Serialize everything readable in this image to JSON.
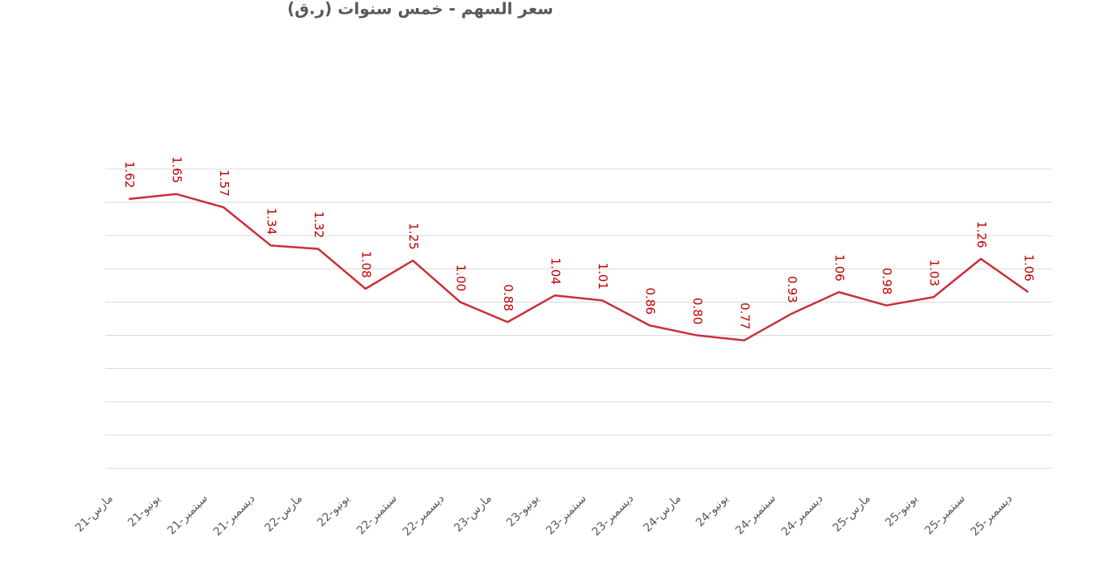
{
  "chart_data": {
    "type": "line",
    "title": "سعر السهم - خمس سنوات (ر.ق)",
    "categories": [
      "مارس-21",
      "يونيو-21",
      "سبتمبر-21",
      "ديسمبر-21",
      "مارس-22",
      "يونيو-22",
      "سبتمبر-22",
      "ديسمبر-22",
      "مارس-23",
      "يونيو-23",
      "سبتمبر-23",
      "ديسمبر-23",
      "مارس-24",
      "يونيو-24",
      "سبتمبر-24",
      "ديسمبر-24",
      "مارس-25",
      "يونيو-25",
      "سبتمبر-25",
      "ديسمبر-25"
    ],
    "values": [
      1.62,
      1.65,
      1.57,
      1.34,
      1.32,
      1.08,
      1.25,
      1.0,
      0.88,
      1.04,
      1.01,
      0.86,
      0.8,
      0.77,
      0.93,
      1.06,
      0.98,
      1.03,
      1.26,
      1.06
    ],
    "value_labels": [
      "1.62",
      "1.65",
      "1.57",
      "1.34",
      "1.32",
      "1.08",
      "1.25",
      "1.00",
      "0.88",
      "1.04",
      "1.01",
      "0.86",
      "0.80",
      "0.77",
      "0.93",
      "1.06",
      "0.98",
      "1.03",
      "1.26",
      "1.06"
    ],
    "color": "#c8303a",
    "ylim": [
      0,
      1.8
    ],
    "yticks": [
      0,
      0.2,
      0.4,
      0.6,
      0.8,
      1,
      1.2,
      1.4,
      1.6,
      1.8
    ],
    "grid": true
  }
}
